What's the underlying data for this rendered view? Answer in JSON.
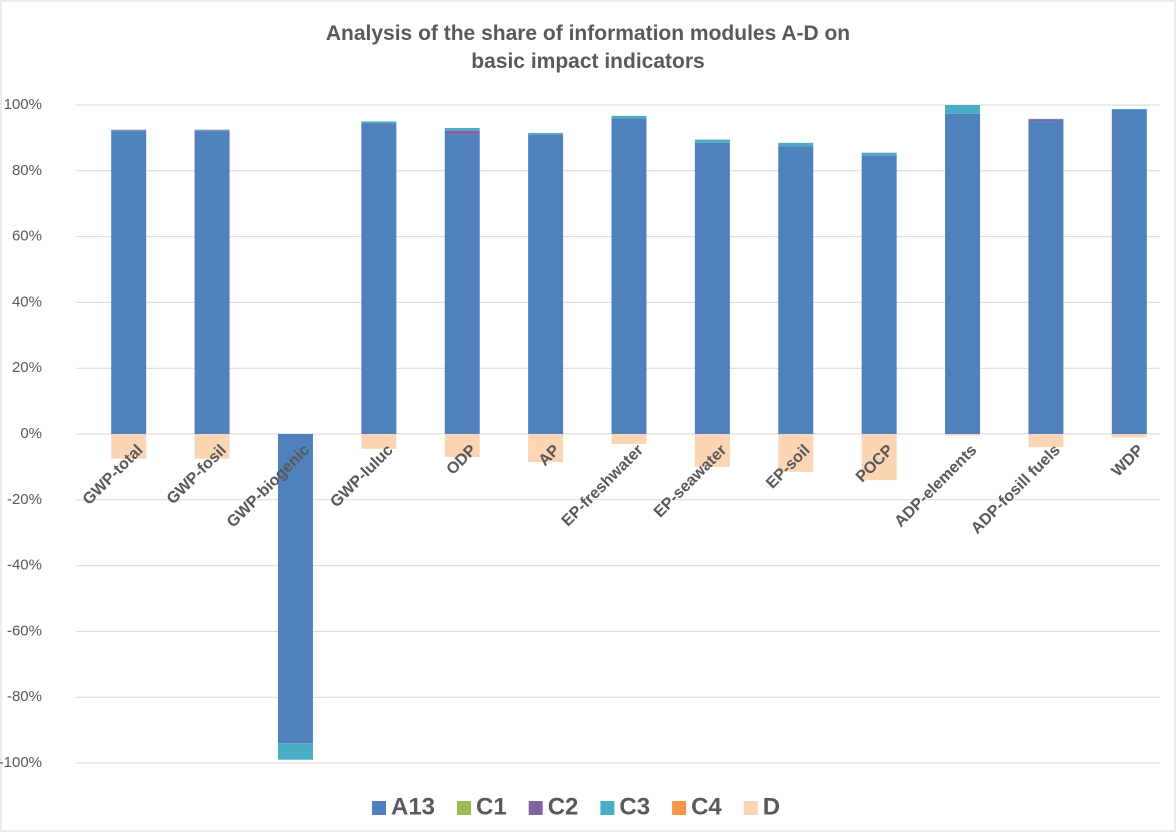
{
  "chart_data": {
    "type": "stacked_bar",
    "title": "Analysis of the share of information modules A-D on basic impact indicators",
    "categories": [
      "GWP-total",
      "GWP-fosil",
      "GWP-biogenic",
      "GWP-luluc",
      "ODP",
      "AP",
      "EP-freshwater",
      "EP-seawater",
      "EP-soil",
      "POCP",
      "ADP-elements",
      "ADP-fosill fuels",
      "WDP"
    ],
    "series": [
      {
        "name": "A13",
        "color": "#4f81bd",
        "values": [
          92,
          92,
          -94,
          94.5,
          91,
          91,
          96,
          88.5,
          87.5,
          84.7,
          97.3,
          95,
          98.5
        ]
      },
      {
        "name": "C1",
        "color": "#9bbb59",
        "values": [
          0,
          0,
          0,
          0,
          0,
          0,
          0,
          0,
          0,
          0,
          0,
          0,
          0
        ]
      },
      {
        "name": "C2",
        "color": "#8064a2",
        "values": [
          0.3,
          0.3,
          0,
          0,
          1.2,
          0,
          0,
          0,
          0,
          0,
          0,
          0.6,
          0
        ]
      },
      {
        "name": "C3",
        "color": "#4bacc6",
        "values": [
          0.2,
          0.2,
          -5,
          0.5,
          0.8,
          0.5,
          0.7,
          1,
          1,
          0.8,
          2.7,
          0.2,
          0.3
        ]
      },
      {
        "name": "C4",
        "color": "#f79646",
        "values": [
          0,
          0,
          0,
          0,
          0,
          0,
          0,
          0,
          0,
          0,
          0,
          0,
          0
        ]
      },
      {
        "name": "D",
        "color": "#fcd5b5",
        "values": [
          -7.5,
          -7.5,
          0,
          -4.5,
          -7,
          -8.5,
          -3,
          -10,
          -11.5,
          -14,
          -0.5,
          -4,
          -1
        ]
      }
    ],
    "ylim": [
      -100,
      100
    ],
    "yticks": [
      {
        "value": -100,
        "label": "-100%"
      },
      {
        "value": -80,
        "label": "-80%"
      },
      {
        "value": -60,
        "label": "-60%"
      },
      {
        "value": -40,
        "label": "-40%"
      },
      {
        "value": -20,
        "label": "-20%"
      },
      {
        "value": 0,
        "label": "0%"
      },
      {
        "value": 20,
        "label": "20%"
      },
      {
        "value": 40,
        "label": "40%"
      },
      {
        "value": 60,
        "label": "60%"
      },
      {
        "value": 80,
        "label": "80%"
      },
      {
        "value": 100,
        "label": "100%"
      }
    ],
    "grid": true,
    "legend": "bottom"
  }
}
